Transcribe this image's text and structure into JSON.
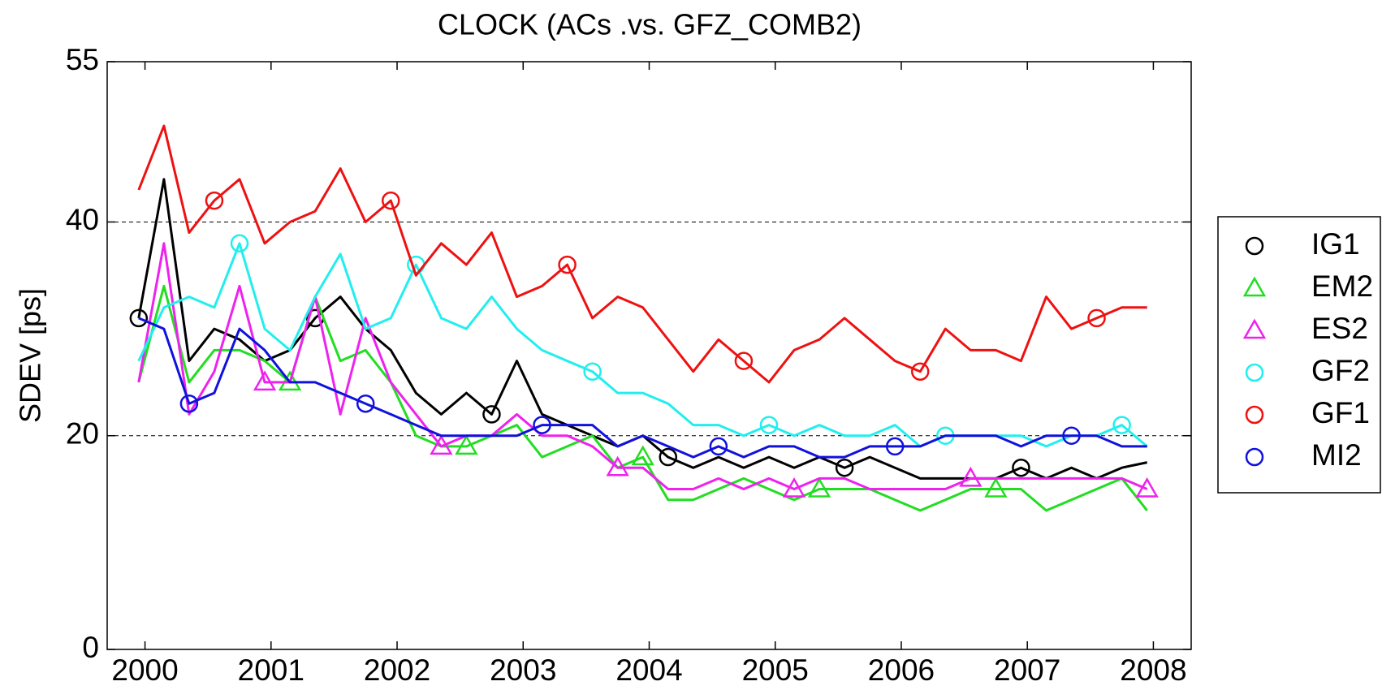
{
  "chart_data": {
    "type": "line",
    "title": "CLOCK (ACs .vs. GFZ_COMB2)",
    "y_label": "SDEV [ps]",
    "x": [
      1999.95,
      2000.15,
      2000.35,
      2000.55,
      2000.75,
      2000.95,
      2001.15,
      2001.35,
      2001.55,
      2001.75,
      2001.95,
      2002.15,
      2002.35,
      2002.55,
      2002.75,
      2002.95,
      2003.15,
      2003.35,
      2003.55,
      2003.75,
      2003.95,
      2004.15,
      2004.35,
      2004.55,
      2004.75,
      2004.95,
      2005.15,
      2005.35,
      2005.55,
      2005.75,
      2005.95,
      2006.15,
      2006.35,
      2006.55,
      2006.75,
      2006.95,
      2007.15,
      2007.35,
      2007.55,
      2007.75,
      2007.95
    ],
    "series": [
      {
        "name": "IG1",
        "color": "#000000",
        "marker": "o",
        "values": [
          31,
          44,
          27,
          30,
          29,
          27,
          28,
          31,
          33,
          30,
          28,
          24,
          22,
          24,
          22,
          27,
          22,
          21,
          20,
          19,
          20,
          18,
          17,
          18,
          17,
          18,
          17,
          18,
          17,
          18,
          17,
          16,
          16,
          16,
          16,
          17,
          16,
          17,
          16,
          17,
          17.5
        ]
      },
      {
        "name": "EM2",
        "color": "#22dd22",
        "marker": "^",
        "values": [
          25,
          34,
          25,
          28,
          28,
          27,
          25,
          33,
          27,
          28,
          25,
          20,
          19,
          19,
          20,
          21,
          18,
          19,
          20,
          17,
          18,
          14,
          14,
          15,
          16,
          15,
          14,
          15,
          15,
          15,
          14,
          13,
          14,
          15,
          15,
          15,
          13,
          14,
          15,
          16,
          13
        ]
      },
      {
        "name": "ES2",
        "color": "#ee22ee",
        "marker": "^",
        "values": [
          25,
          38,
          22,
          26,
          34,
          25,
          25,
          33,
          22,
          31,
          25,
          22,
          19,
          20,
          20,
          22,
          20,
          20,
          19,
          17,
          17,
          15,
          15,
          16,
          15,
          16,
          15,
          16,
          16,
          15,
          15,
          15,
          15,
          16,
          16,
          16,
          16,
          16,
          16,
          16,
          15
        ]
      },
      {
        "name": "GF2",
        "color": "#22eeee",
        "marker": "o",
        "values": [
          27,
          32,
          33,
          32,
          38,
          30,
          28,
          33,
          37,
          30,
          31,
          36,
          31,
          30,
          33,
          30,
          28,
          27,
          26,
          24,
          24,
          23,
          21,
          21,
          20,
          21,
          20,
          21,
          20,
          20,
          21,
          19,
          20,
          20,
          20,
          20,
          19,
          20,
          20,
          21,
          19
        ]
      },
      {
        "name": "GF1",
        "color": "#ee1111",
        "marker": "o",
        "values": [
          43,
          49,
          39,
          42,
          44,
          38,
          40,
          41,
          45,
          40,
          42,
          35,
          38,
          36,
          39,
          33,
          34,
          36,
          31,
          33,
          32,
          29,
          26,
          29,
          27,
          25,
          28,
          29,
          31,
          29,
          27,
          26,
          30,
          28,
          28,
          27,
          33,
          30,
          31,
          32,
          32
        ]
      },
      {
        "name": "MI2",
        "color": "#1111dd",
        "marker": "o",
        "values": [
          31,
          30,
          23,
          24,
          30,
          28,
          25,
          25,
          24,
          23,
          22,
          21,
          20,
          20,
          20,
          20,
          21,
          21,
          21,
          19,
          20,
          19,
          18,
          19,
          18,
          19,
          19,
          18,
          18,
          19,
          19,
          19,
          20,
          20,
          20,
          19,
          20,
          20,
          20,
          19,
          19
        ]
      }
    ],
    "xlim": [
      1999.7,
      2008.3
    ],
    "xticks": [
      2000,
      2001,
      2002,
      2003,
      2004,
      2005,
      2006,
      2007,
      2008
    ],
    "ylim": [
      0,
      55
    ],
    "yticks": [
      0,
      20,
      40,
      55
    ],
    "grid_lines_at": [
      20,
      40
    ],
    "legend": "right"
  }
}
